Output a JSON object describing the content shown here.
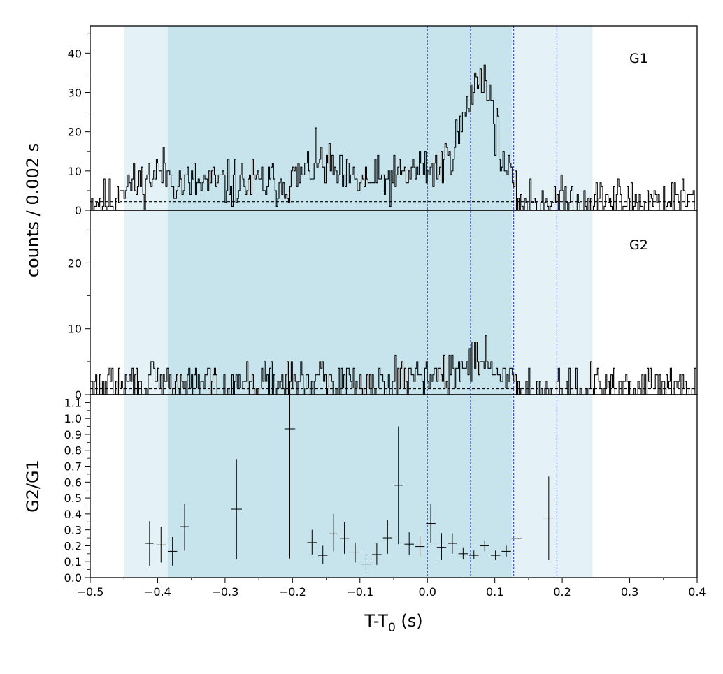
{
  "chart_data": {
    "type": "line",
    "x_axis": {
      "label": "T-T",
      "label_sub": "0",
      "label_unit": " (s)",
      "range": [
        -0.5,
        0.4
      ],
      "major_ticks": [
        -0.5,
        -0.4,
        -0.3,
        -0.2,
        -0.1,
        0.0,
        0.1,
        0.2,
        0.3,
        0.4
      ],
      "tick_labels": [
        "−0.5",
        "−0.4",
        "−0.3",
        "−0.2",
        "−0.1",
        "0.0",
        "0.1",
        "0.2",
        "0.3",
        "0.4"
      ]
    },
    "shaded_regions": [
      {
        "x": [
          -0.45,
          0.245
        ],
        "color": "#e4f2f7"
      },
      {
        "x": [
          -0.385,
          0.125
        ],
        "color": "#c7e4ec"
      }
    ],
    "vertical_lines": {
      "x": [
        0.0,
        0.064,
        0.128,
        0.192
      ],
      "color": "#2233cc"
    },
    "shared_ylabel": "counts /  0.002 s",
    "panels": [
      {
        "id": "G1",
        "label": "G1",
        "ylim": [
          0,
          47
        ],
        "major_ticks": [
          0,
          10,
          20,
          30,
          40
        ],
        "tick_labels": [
          "0",
          "10",
          "20",
          "30",
          "40"
        ],
        "background_level": 2.2,
        "bin_width": 0.002,
        "components": [
          {
            "type": "base",
            "level": 2.4
          },
          {
            "type": "ramp",
            "x0": -0.46,
            "x1": 0.128,
            "y0": 4.0,
            "y1": 5.5
          },
          {
            "type": "gauss",
            "center": -0.395,
            "width": 0.015,
            "amp": 3.5
          },
          {
            "type": "gauss",
            "center": -0.16,
            "width": 0.018,
            "amp": 5.0
          },
          {
            "type": "gauss",
            "center": -0.01,
            "width": 0.02,
            "amp": 3.0
          },
          {
            "type": "gauss",
            "center": 0.06,
            "width": 0.022,
            "amp": 14.0
          },
          {
            "type": "gauss",
            "center": 0.082,
            "width": 0.013,
            "amp": 17.0
          },
          {
            "type": "gauss",
            "center": 0.1,
            "width": 0.01,
            "amp": 6.0
          }
        ],
        "noise": 3.0,
        "seed": 11
      },
      {
        "id": "G2",
        "label": "G2",
        "ylim": [
          0,
          28
        ],
        "major_ticks": [
          0,
          10,
          20
        ],
        "tick_labels": [
          "0",
          "10",
          "20"
        ],
        "background_level": 0.9,
        "bin_width": 0.002,
        "components": [
          {
            "type": "base",
            "level": 1.0
          },
          {
            "type": "ramp",
            "x0": -0.46,
            "x1": 0.128,
            "y0": 0.6,
            "y1": 1.0
          },
          {
            "type": "gauss",
            "center": -0.01,
            "width": 0.02,
            "amp": 1.5
          },
          {
            "type": "gauss",
            "center": 0.075,
            "width": 0.02,
            "amp": 4.0
          }
        ],
        "noise": 1.6,
        "seed": 29
      },
      {
        "id": "ratio",
        "ylabel": "G2/G1",
        "ylim": [
          0,
          1.15
        ],
        "major_ticks": [
          0.0,
          0.1,
          0.2,
          0.3,
          0.4,
          0.5,
          0.6,
          0.7,
          0.8,
          0.9,
          1.0,
          1.1
        ],
        "tick_labels": [
          "0.0",
          "0.1",
          "0.2",
          "0.3",
          "0.4",
          "0.5",
          "0.6",
          "0.7",
          "0.8",
          "0.9",
          "1.0",
          "1.1"
        ],
        "points": [
          {
            "x": -0.412,
            "y": 0.215,
            "xerr": 0.006,
            "ylo": 0.075,
            "yhi": 0.355
          },
          {
            "x": -0.395,
            "y": 0.205,
            "xerr": 0.007,
            "ylo": 0.095,
            "yhi": 0.32
          },
          {
            "x": -0.378,
            "y": 0.165,
            "xerr": 0.007,
            "ylo": 0.075,
            "yhi": 0.255
          },
          {
            "x": -0.36,
            "y": 0.32,
            "xerr": 0.007,
            "ylo": 0.17,
            "yhi": 0.465
          },
          {
            "x": -0.283,
            "y": 0.43,
            "xerr": 0.008,
            "ylo": 0.115,
            "yhi": 0.745
          },
          {
            "x": -0.204,
            "y": 0.935,
            "xerr": 0.008,
            "ylo": 0.12,
            "yhi": 1.15
          },
          {
            "x": -0.171,
            "y": 0.22,
            "xerr": 0.007,
            "ylo": 0.145,
            "yhi": 0.3
          },
          {
            "x": -0.155,
            "y": 0.14,
            "xerr": 0.007,
            "ylo": 0.085,
            "yhi": 0.2
          },
          {
            "x": -0.139,
            "y": 0.275,
            "xerr": 0.007,
            "ylo": 0.165,
            "yhi": 0.4
          },
          {
            "x": -0.123,
            "y": 0.245,
            "xerr": 0.007,
            "ylo": 0.15,
            "yhi": 0.35
          },
          {
            "x": -0.107,
            "y": 0.16,
            "xerr": 0.007,
            "ylo": 0.095,
            "yhi": 0.22
          },
          {
            "x": -0.091,
            "y": 0.085,
            "xerr": 0.007,
            "ylo": 0.03,
            "yhi": 0.14
          },
          {
            "x": -0.075,
            "y": 0.145,
            "xerr": 0.007,
            "ylo": 0.08,
            "yhi": 0.215
          },
          {
            "x": -0.059,
            "y": 0.25,
            "xerr": 0.007,
            "ylo": 0.15,
            "yhi": 0.36
          },
          {
            "x": -0.043,
            "y": 0.58,
            "xerr": 0.007,
            "ylo": 0.21,
            "yhi": 0.95
          },
          {
            "x": -0.027,
            "y": 0.21,
            "xerr": 0.007,
            "ylo": 0.14,
            "yhi": 0.285
          },
          {
            "x": -0.011,
            "y": 0.195,
            "xerr": 0.007,
            "ylo": 0.13,
            "yhi": 0.26
          },
          {
            "x": 0.005,
            "y": 0.34,
            "xerr": 0.007,
            "ylo": 0.22,
            "yhi": 0.46
          },
          {
            "x": 0.021,
            "y": 0.19,
            "xerr": 0.007,
            "ylo": 0.11,
            "yhi": 0.28
          },
          {
            "x": 0.037,
            "y": 0.215,
            "xerr": 0.007,
            "ylo": 0.15,
            "yhi": 0.28
          },
          {
            "x": 0.053,
            "y": 0.15,
            "xerr": 0.007,
            "ylo": 0.115,
            "yhi": 0.19
          },
          {
            "x": 0.069,
            "y": 0.14,
            "xerr": 0.007,
            "ylo": 0.115,
            "yhi": 0.17
          },
          {
            "x": 0.085,
            "y": 0.2,
            "xerr": 0.007,
            "ylo": 0.165,
            "yhi": 0.235
          },
          {
            "x": 0.101,
            "y": 0.14,
            "xerr": 0.007,
            "ylo": 0.11,
            "yhi": 0.17
          },
          {
            "x": 0.117,
            "y": 0.165,
            "xerr": 0.007,
            "ylo": 0.13,
            "yhi": 0.2
          },
          {
            "x": 0.133,
            "y": 0.245,
            "xerr": 0.008,
            "ylo": 0.085,
            "yhi": 0.405
          },
          {
            "x": 0.18,
            "y": 0.375,
            "xerr": 0.008,
            "ylo": 0.11,
            "yhi": 0.635
          }
        ]
      }
    ]
  }
}
